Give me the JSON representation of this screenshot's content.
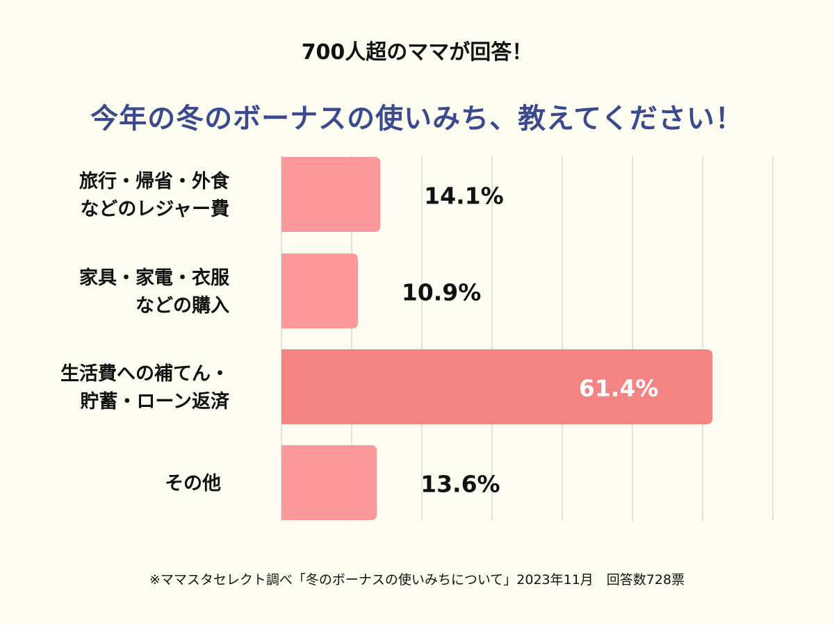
{
  "header": {
    "subtitle": "700人超のママが回答！",
    "title": "今年の冬のボーナスの使いみち、教えてください！"
  },
  "footnote": "※ママスタセレクト調べ「冬のボーナスの使いみちについて」2023年11月　回答数728票",
  "chart_data": {
    "type": "bar",
    "orientation": "horizontal",
    "categories": [
      "旅行・帰省・外食\nなどのレジャー費",
      "家具・家電・衣服\nなどの購入",
      "生活費への補てん・\n貯蓄・ローン返済",
      "その他"
    ],
    "values": [
      14.1,
      10.9,
      61.4,
      13.6
    ],
    "value_labels": [
      "14.1%",
      "10.9%",
      "61.4%",
      "13.6%"
    ],
    "xlim": [
      0,
      70
    ],
    "grid": true,
    "colors": {
      "bar": "#fc9a9b",
      "highlight_bar": "#f48384",
      "highlight_text": "#ffffff",
      "text": "#111111",
      "grid": "#c8c8c0"
    },
    "highlight_index": 2
  }
}
